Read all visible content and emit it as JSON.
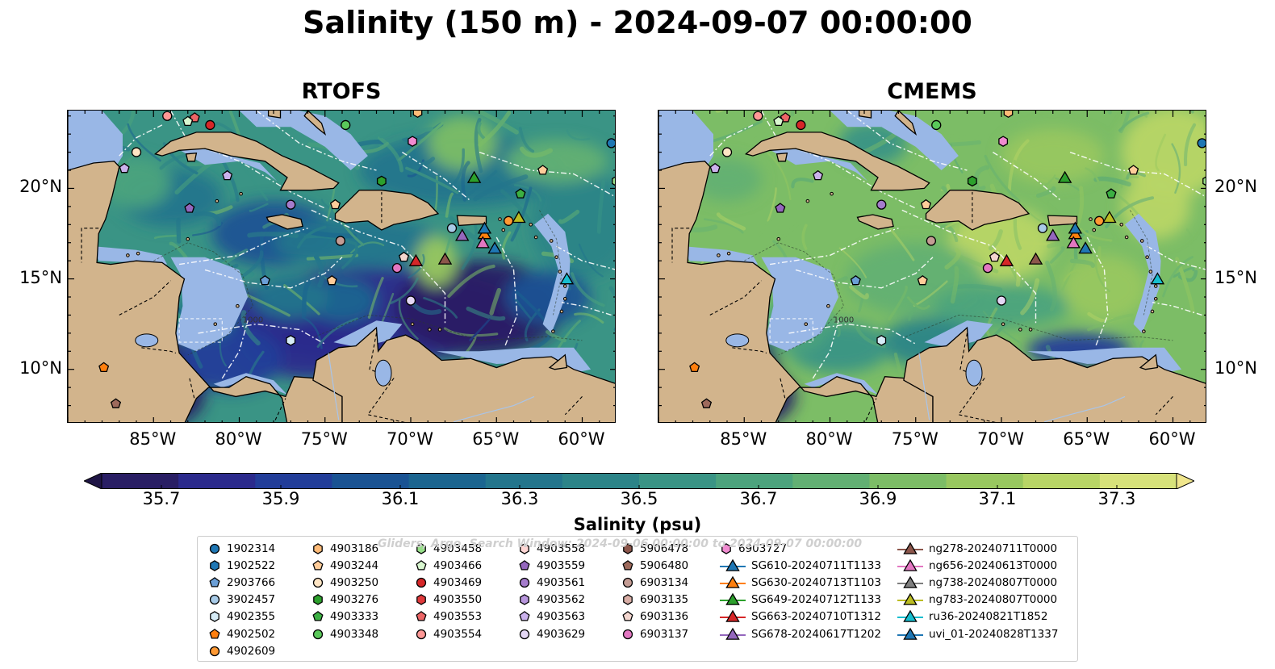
{
  "title": "Salinity (150 m) - 2024-09-07 00:00:00",
  "panels": [
    {
      "name": "RTOFS",
      "scheme": "rtofs"
    },
    {
      "name": "CMEMS",
      "scheme": "cmems"
    }
  ],
  "map": {
    "lon_range": [
      -90.0,
      -58.0
    ],
    "lat_range": [
      7.0,
      24.3
    ],
    "lon_ticks": [
      {
        "value": -85,
        "label": "85°W"
      },
      {
        "value": -80,
        "label": "80°W"
      },
      {
        "value": -75,
        "label": "75°W"
      },
      {
        "value": -70,
        "label": "70°W"
      },
      {
        "value": -65,
        "label": "65°W"
      },
      {
        "value": -60,
        "label": "60°W"
      }
    ],
    "lat_ticks": [
      {
        "value": 20,
        "label": "20°N"
      },
      {
        "value": 15,
        "label": "15°N"
      },
      {
        "value": 10,
        "label": "10°N"
      }
    ],
    "land_color": "#d2b48c",
    "shelf_color": "#99b7e6",
    "contour_label": "1000"
  },
  "colorbar": {
    "label": "Salinity (psu)",
    "min": 35.6,
    "max": 37.4,
    "extend": "both",
    "tick_labels": [
      "35.7",
      "35.9",
      "36.1",
      "36.3",
      "36.5",
      "36.7",
      "36.9",
      "37.1",
      "37.3"
    ],
    "tick_values": [
      35.7,
      35.9,
      36.1,
      36.3,
      36.5,
      36.7,
      36.9,
      37.1,
      37.3
    ],
    "colors": [
      "#291e64",
      "#2b2a8c",
      "#223d99",
      "#1a5393",
      "#1b6590",
      "#23758c",
      "#2c8488",
      "#3a9485",
      "#4ca37d",
      "#62b073",
      "#7cbd66",
      "#98c75f",
      "#b8d566",
      "#d7e27a"
    ],
    "under_color": "#1f1545",
    "over_color": "#f0e68c"
  },
  "watermark": "Gliders, Argo, Search Window: 2024-09-06 00:00:00 to 2024-09-07 00:00:00",
  "legend": {
    "columns": [
      [
        {
          "label": "1902314",
          "marker": "circle",
          "color": "#1f77b4"
        },
        {
          "label": "1902522",
          "marker": "hexagon",
          "color": "#1f77b4"
        },
        {
          "label": "2903766",
          "marker": "pentagon",
          "color": "#6b9fd6"
        },
        {
          "label": "3902457",
          "marker": "circle",
          "color": "#a8cbe8"
        },
        {
          "label": "4902355",
          "marker": "hexagon",
          "color": "#d6ecf7"
        },
        {
          "label": "4902502",
          "marker": "pentagon",
          "color": "#ff7f0e"
        },
        {
          "label": "4902609",
          "marker": "circle",
          "color": "#ff9933"
        }
      ],
      [
        {
          "label": "4903186",
          "marker": "hexagon",
          "color": "#ffbb78"
        },
        {
          "label": "4903244",
          "marker": "pentagon",
          "color": "#ffcc99"
        },
        {
          "label": "4903250",
          "marker": "circle",
          "color": "#ffe5c4"
        },
        {
          "label": "4903276",
          "marker": "hexagon",
          "color": "#2ca02c"
        },
        {
          "label": "4903333",
          "marker": "pentagon",
          "color": "#3cb043"
        },
        {
          "label": "4903348",
          "marker": "circle",
          "color": "#5ac85a"
        }
      ],
      [
        {
          "label": "4903458",
          "marker": "hexagon",
          "color": "#98df8a"
        },
        {
          "label": "4903466",
          "marker": "pentagon",
          "color": "#d9f7d0"
        },
        {
          "label": "4903469",
          "marker": "circle",
          "color": "#d62728"
        },
        {
          "label": "4903550",
          "marker": "hexagon",
          "color": "#e0393b"
        },
        {
          "label": "4903553",
          "marker": "pentagon",
          "color": "#ec6566"
        },
        {
          "label": "4903554",
          "marker": "circle",
          "color": "#ff9896"
        }
      ],
      [
        {
          "label": "4903558",
          "marker": "hexagon",
          "color": "#ffd6d4"
        },
        {
          "label": "4903559",
          "marker": "pentagon",
          "color": "#9467bd"
        },
        {
          "label": "4903561",
          "marker": "circle",
          "color": "#a57ccc"
        },
        {
          "label": "4903562",
          "marker": "hexagon",
          "color": "#b896dd"
        },
        {
          "label": "4903563",
          "marker": "pentagon",
          "color": "#cbb2ec"
        },
        {
          "label": "4903629",
          "marker": "circle",
          "color": "#e4d7f5"
        }
      ],
      [
        {
          "label": "5906478",
          "marker": "hexagon",
          "color": "#8c564b"
        },
        {
          "label": "5906480",
          "marker": "pentagon",
          "color": "#9e6a5c"
        },
        {
          "label": "6903134",
          "marker": "circle",
          "color": "#c49c94"
        },
        {
          "label": "6903135",
          "marker": "hexagon",
          "color": "#d9aea6"
        },
        {
          "label": "6903136",
          "marker": "pentagon",
          "color": "#f3d6cf"
        },
        {
          "label": "6903137",
          "marker": "circle",
          "color": "#e377c2"
        }
      ],
      [
        {
          "label": "6903727",
          "marker": "hexagon",
          "color": "#f08bd0"
        },
        {
          "label": "SG610-20240711T1133",
          "marker": "triangle-line",
          "color": "#1f77b4"
        },
        {
          "label": "SG630-20240713T1103",
          "marker": "triangle-line",
          "color": "#ff7f0e"
        },
        {
          "label": "SG649-20240712T1133",
          "marker": "triangle-line",
          "color": "#2ca02c"
        },
        {
          "label": "SG663-20240710T1312",
          "marker": "triangle-line",
          "color": "#d62728"
        },
        {
          "label": "SG678-20240617T1202",
          "marker": "triangle-line",
          "color": "#9467bd"
        }
      ],
      [
        {
          "label": "ng278-20240711T0000",
          "marker": "triangle-line",
          "color": "#8c564b"
        },
        {
          "label": "ng656-20240613T0000",
          "marker": "triangle-line",
          "color": "#e377c2"
        },
        {
          "label": "ng738-20240807T0000",
          "marker": "triangle-line",
          "color": "#7f7f7f"
        },
        {
          "label": "ng783-20240807T0000",
          "marker": "triangle-line",
          "color": "#bcbd22"
        },
        {
          "label": "ru36-20240821T1852",
          "marker": "triangle-line",
          "color": "#17becf"
        },
        {
          "label": "uvi_01-20240828T1337",
          "marker": "triangle-line",
          "color": "#1f77b4"
        }
      ]
    ]
  },
  "observations": [
    {
      "id": "1902314",
      "lon": -58.3,
      "lat": 22.5
    },
    {
      "id": "4903554",
      "lon": -84.2,
      "lat": 24.0
    },
    {
      "id": "4903553",
      "lon": -82.6,
      "lat": 23.9
    },
    {
      "id": "4903466",
      "lon": -83.0,
      "lat": 23.7
    },
    {
      "id": "4903469",
      "lon": -81.7,
      "lat": 23.5
    },
    {
      "id": "4903250",
      "lon": -86.0,
      "lat": 22.0
    },
    {
      "id": "4903348",
      "lon": -73.8,
      "lat": 23.5
    },
    {
      "id": "6903727",
      "lon": -69.9,
      "lat": 22.6
    },
    {
      "id": "4903186",
      "lon": -69.6,
      "lat": 24.2
    },
    {
      "id": "4903563",
      "lon": -86.7,
      "lat": 21.1
    },
    {
      "id": "4903563",
      "lon": -80.7,
      "lat": 20.7
    },
    {
      "id": "4903276",
      "lon": -71.7,
      "lat": 20.4
    },
    {
      "id": "SG649-20240712T1133",
      "lon": -66.3,
      "lat": 20.6
    },
    {
      "id": "4903244",
      "lon": -62.3,
      "lat": 21.0
    },
    {
      "id": "4903333",
      "lon": -63.6,
      "lat": 19.7
    },
    {
      "id": "4903458",
      "lon": -58.0,
      "lat": 20.4
    },
    {
      "id": "4903559",
      "lon": -82.9,
      "lat": 18.9
    },
    {
      "id": "4903561",
      "lon": -77.0,
      "lat": 19.1
    },
    {
      "id": "4903244",
      "lon": -74.4,
      "lat": 19.1
    },
    {
      "id": "3902457",
      "lon": -67.6,
      "lat": 17.8
    },
    {
      "id": "4902609",
      "lon": -64.3,
      "lat": 18.2
    },
    {
      "id": "ng783-20240807T0000",
      "lon": -63.7,
      "lat": 18.4
    },
    {
      "id": "SG630-20240713T1103",
      "lon": -65.7,
      "lat": 17.5
    },
    {
      "id": "SG610-20240711T1133",
      "lon": -65.7,
      "lat": 17.8
    },
    {
      "id": "SG678-20240617T1202",
      "lon": -67.0,
      "lat": 17.4
    },
    {
      "id": "ng656-20240613T0000",
      "lon": -65.8,
      "lat": 17.0
    },
    {
      "id": "uvi_01-20240828T1337",
      "lon": -65.1,
      "lat": 16.7
    },
    {
      "id": "6903134",
      "lon": -74.1,
      "lat": 17.1
    },
    {
      "id": "6903136",
      "lon": -70.4,
      "lat": 16.2
    },
    {
      "id": "6903137",
      "lon": -70.8,
      "lat": 15.6
    },
    {
      "id": "SG663-20240710T1312",
      "lon": -69.7,
      "lat": 16.0
    },
    {
      "id": "ng278-20240711T0000",
      "lon": -68.0,
      "lat": 16.1
    },
    {
      "id": "ru36-20240821T1852",
      "lon": -60.9,
      "lat": 15.0
    },
    {
      "id": "2903766",
      "lon": -78.5,
      "lat": 14.9
    },
    {
      "id": "4903244",
      "lon": -74.6,
      "lat": 14.9
    },
    {
      "id": "4903629",
      "lon": -70.0,
      "lat": 13.8
    },
    {
      "id": "4902355",
      "lon": -77.0,
      "lat": 11.6
    },
    {
      "id": "4902502",
      "lon": -87.9,
      "lat": 10.1
    },
    {
      "id": "5906480",
      "lon": -87.2,
      "lat": 8.1
    }
  ]
}
